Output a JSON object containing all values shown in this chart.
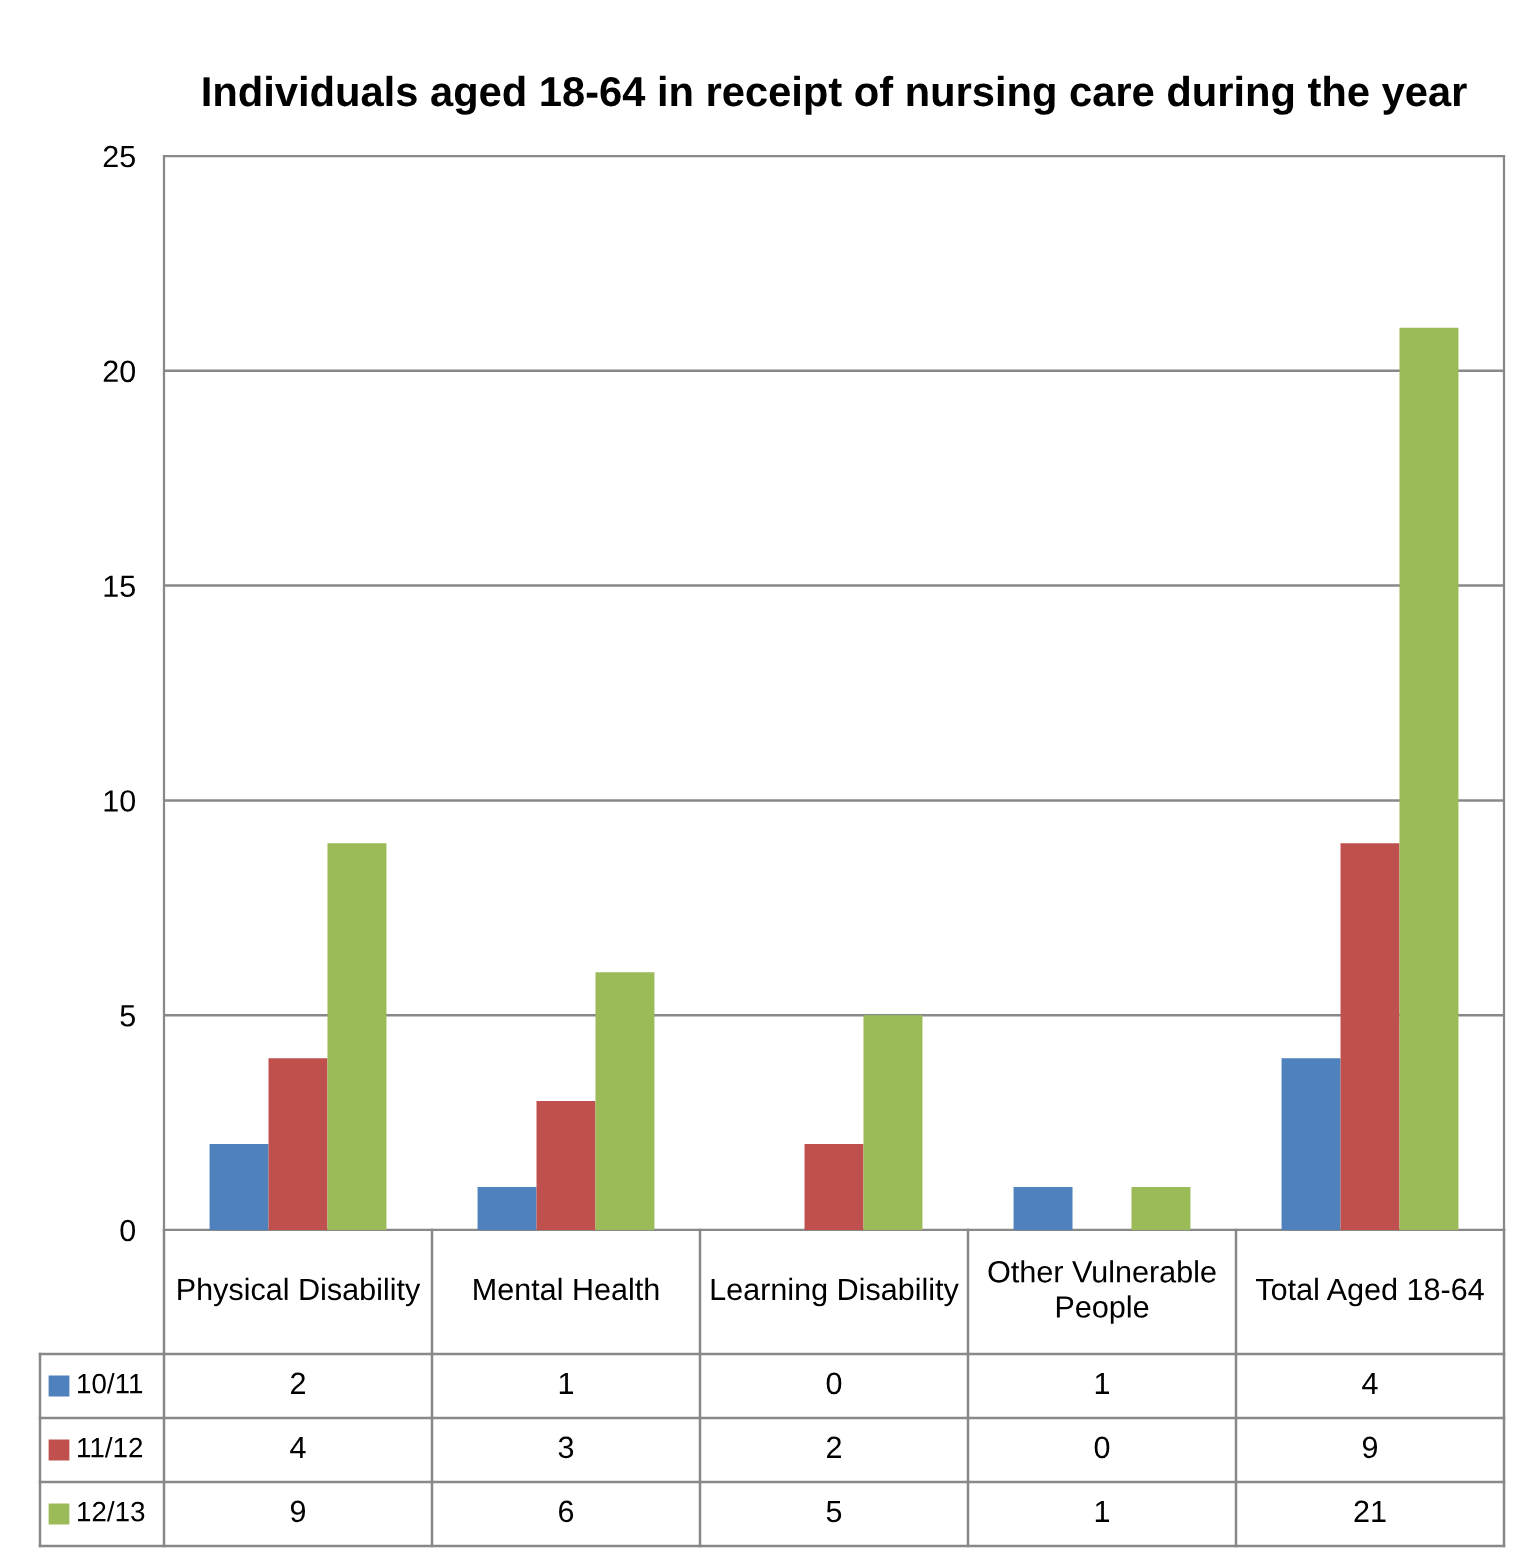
{
  "chart_data": {
    "type": "bar",
    "title": "Individuals aged 18-64 in receipt of nursing care during the year",
    "categories": [
      "Physical Disability",
      "Mental Health",
      "Learning Disability",
      "Other Vulnerable\nPeople",
      "Total Aged 18-64"
    ],
    "series": [
      {
        "name": "10/11",
        "color": "#4f81bd",
        "values": [
          2,
          1,
          0,
          1,
          4
        ]
      },
      {
        "name": "11/12",
        "color": "#c0504d",
        "values": [
          4,
          3,
          2,
          0,
          9
        ]
      },
      {
        "name": "12/13",
        "color": "#9bbb59",
        "values": [
          9,
          6,
          5,
          1,
          21
        ]
      }
    ],
    "ylim": [
      0,
      25
    ],
    "yticks": [
      0,
      5,
      10,
      15,
      20,
      25
    ],
    "grid": "y",
    "data_labels": true,
    "legend": "bottom left"
  }
}
